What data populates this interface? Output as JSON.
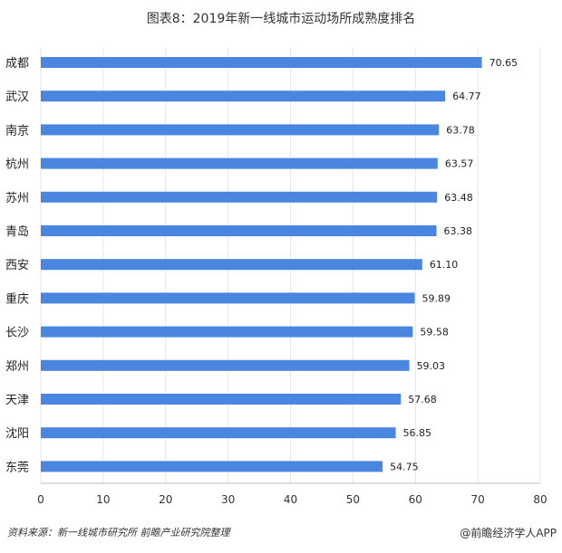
{
  "chart_data": {
    "type": "bar",
    "orientation": "horizontal",
    "title": "图表8：2019年新一线城市运动场所成熟度排名",
    "categories": [
      "成都",
      "武汉",
      "南京",
      "杭州",
      "苏州",
      "青岛",
      "西安",
      "重庆",
      "长沙",
      "郑州",
      "天津",
      "沈阳",
      "东莞"
    ],
    "values": [
      70.65,
      64.77,
      63.78,
      63.57,
      63.48,
      63.38,
      61.1,
      59.89,
      59.58,
      59.03,
      57.68,
      56.85,
      54.75
    ],
    "value_labels": [
      "70.65",
      "64.77",
      "63.78",
      "63.57",
      "63.48",
      "63.38",
      "61.10",
      "59.89",
      "59.58",
      "59.03",
      "57.68",
      "56.85",
      "54.75"
    ],
    "xlim": [
      0,
      80
    ],
    "xticks": [
      0,
      10,
      20,
      30,
      40,
      50,
      60,
      70,
      80
    ],
    "grid": true,
    "bar_color": "#4a86e0"
  },
  "footer": {
    "source": "资料来源：新一线城市研究所 前瞻产业研究院整理",
    "brand": "@前瞻经济学人APP"
  }
}
